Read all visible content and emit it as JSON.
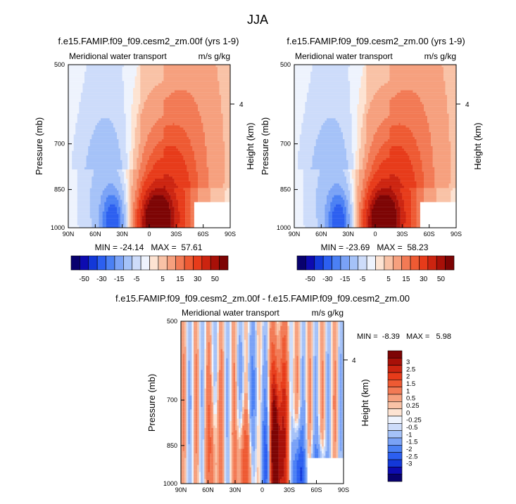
{
  "page_title": "JJA",
  "units": {
    "quantity": "Meridional water transport",
    "unit": "m/s g/kg"
  },
  "colors": [
    "#08016e",
    "#0d0bb0",
    "#1338d8",
    "#2c5ff0",
    "#4b80f4",
    "#7aa2f6",
    "#a5c2f8",
    "#cddcfa",
    "#eef3fd",
    "#fde3d2",
    "#f9c2a6",
    "#f6a07e",
    "#f27a55",
    "#ee5a33",
    "#e73b1a",
    "#cc2410",
    "#a81008",
    "#7d0404"
  ],
  "chart_data": [
    {
      "id": "top-left",
      "type": "heatmap",
      "title": "f.e15.FAMIP.f09_f09.cesm2_zm.00f (yrs 1-9)",
      "left_label": "Meridional water transport",
      "right_label": "m/s g/kg",
      "ylabel": "Pressure (mb)",
      "y2label": "Height (km)",
      "xticks": [
        "90N",
        "60N",
        "30N",
        "0",
        "30S",
        "60S",
        "90S"
      ],
      "yticks": [
        "500",
        "700",
        "850",
        "1000"
      ],
      "y2ticks": [
        "4"
      ],
      "stats": "MIN = -24.14   MAX =  57.61",
      "colorbar_labels": [
        "-50",
        "-30",
        "-15",
        "-5",
        "5",
        "15",
        "30",
        "50"
      ],
      "field": "mean",
      "scale": 57.6
    },
    {
      "id": "top-right",
      "type": "heatmap",
      "title": "f.e15.FAMIP.f09_f09.cesm2_zm.00 (yrs 1-9)",
      "left_label": "Meridional water transport",
      "right_label": "m/s g/kg",
      "ylabel": "Pressure (mb)",
      "y2label": "Height (km)",
      "xticks": [
        "90N",
        "60N",
        "30N",
        "0",
        "30S",
        "60S",
        "90S"
      ],
      "yticks": [
        "500",
        "700",
        "850",
        "1000"
      ],
      "y2ticks": [
        "4"
      ],
      "stats": "MIN = -23.69   MAX =  58.23",
      "colorbar_labels": [
        "-50",
        "-30",
        "-15",
        "-5",
        "5",
        "15",
        "30",
        "50"
      ],
      "field": "mean",
      "scale": 58.2
    },
    {
      "id": "bottom",
      "type": "heatmap",
      "title": "f.e15.FAMIP.f09_f09.cesm2_zm.00f - f.e15.FAMIP.f09_f09.cesm2_zm.00",
      "left_label": "Meridional water transport",
      "right_label": "m/s g/kg",
      "ylabel": "Pressure (mb)",
      "y2label": "Height (km)",
      "xticks": [
        "90N",
        "60N",
        "30N",
        "0",
        "30S",
        "60S",
        "90S"
      ],
      "yticks": [
        "500",
        "700",
        "850",
        "1000"
      ],
      "y2ticks": [
        "4"
      ],
      "stats": "MIN =  -8.39   MAX =   5.98",
      "colorbar_labels": [
        "3",
        "2.5",
        "2",
        "1.5",
        "1",
        "0.5",
        "0.25",
        "0",
        "-0.25",
        "-0.5",
        "-1",
        "-1.5",
        "-2",
        "-2.5",
        "-3"
      ],
      "field": "diff",
      "scale": 6.0
    }
  ]
}
